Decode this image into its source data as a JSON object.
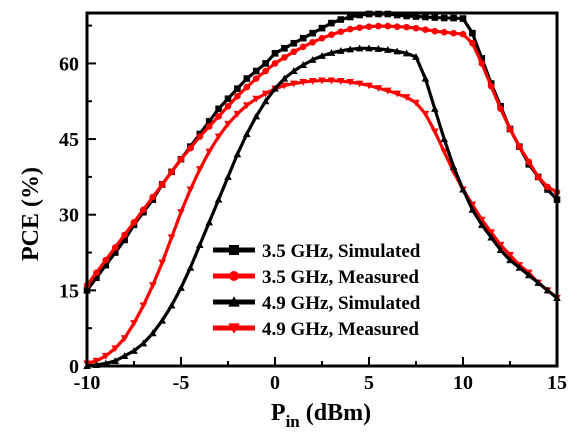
{
  "chart_data": {
    "type": "line",
    "xlabel": "P",
    "xlabel_sub": "in",
    "xlabel_unit": "(dBm)",
    "ylabel": "PCE (%)",
    "xlim": [
      -10,
      15
    ],
    "ylim": [
      0,
      70
    ],
    "xticks": [
      -10,
      -5,
      0,
      5,
      10,
      15
    ],
    "yticks": [
      0,
      15,
      30,
      45,
      60
    ],
    "legend_position": "bottom-center",
    "series": [
      {
        "name": "3.5 GHz, Simulated",
        "color": "#000000",
        "marker": "square",
        "x": [
          -10,
          -9.5,
          -9,
          -8.5,
          -8,
          -7.5,
          -7,
          -6.5,
          -6,
          -5.5,
          -5,
          -4.5,
          -4,
          -3.5,
          -3,
          -2.5,
          -2,
          -1.5,
          -1,
          -0.5,
          0,
          0.5,
          1,
          1.5,
          2,
          2.5,
          3,
          3.5,
          4,
          4.5,
          5,
          5.5,
          6,
          6.5,
          7,
          7.5,
          8,
          8.5,
          9,
          9.5,
          10,
          10.5,
          11,
          11.5,
          12,
          12.5,
          13,
          13.5,
          14,
          14.5,
          15
        ],
        "y": [
          15,
          17.5,
          20,
          22.5,
          25,
          28,
          30.5,
          33,
          36,
          38.5,
          41,
          43.5,
          46,
          48.5,
          51,
          53,
          55,
          57,
          58.5,
          60,
          62,
          63,
          64,
          65,
          66,
          67,
          68,
          68.7,
          69.2,
          69.6,
          69.8,
          69.8,
          69.8,
          69.6,
          69.4,
          69.3,
          69.2,
          69.1,
          69,
          69,
          68.9,
          66,
          61,
          56,
          51.5,
          47,
          43.5,
          40,
          37.5,
          35,
          33
        ]
      },
      {
        "name": "3.5 GHz, Measured",
        "color": "#ff0000",
        "marker": "circle",
        "x": [
          -10,
          -9.5,
          -9,
          -8.5,
          -8,
          -7.5,
          -7,
          -6.5,
          -6,
          -5.5,
          -5,
          -4.5,
          -4,
          -3.5,
          -3,
          -2.5,
          -2,
          -1.5,
          -1,
          -0.5,
          0,
          0.5,
          1,
          1.5,
          2,
          2.5,
          3,
          3.5,
          4,
          4.5,
          5,
          5.5,
          6,
          6.5,
          7,
          7.5,
          8,
          8.5,
          9,
          9.5,
          10,
          10.5,
          11,
          11.5,
          12,
          12.5,
          13,
          13.5,
          14,
          14.5,
          15
        ],
        "y": [
          16,
          18.5,
          21,
          23.5,
          26,
          28.5,
          31,
          33.5,
          36,
          38.5,
          41,
          43.2,
          45.5,
          47.5,
          49.5,
          51.5,
          53.5,
          55.3,
          57,
          58.5,
          60,
          61.2,
          62.3,
          63.3,
          64.2,
          65,
          65.7,
          66.3,
          66.8,
          67.1,
          67.3,
          67.4,
          67.4,
          67.3,
          67.2,
          67,
          66.7,
          66.4,
          66.2,
          66,
          65.8,
          64,
          60,
          55.5,
          51,
          47,
          43.5,
          40.5,
          37.5,
          35.5,
          34.5
        ]
      },
      {
        "name": "4.9 GHz, Simulated",
        "color": "#000000",
        "marker": "triangle-up",
        "x": [
          -10,
          -9.5,
          -9,
          -8.5,
          -8,
          -7.5,
          -7,
          -6.5,
          -6,
          -5.5,
          -5,
          -4.5,
          -4,
          -3.5,
          -3,
          -2.5,
          -2,
          -1.5,
          -1,
          -0.5,
          0,
          0.5,
          1,
          1.5,
          2,
          2.5,
          3,
          3.5,
          4,
          4.5,
          5,
          5.5,
          6,
          6.5,
          7,
          7.5,
          8,
          8.5,
          9,
          9.5,
          10,
          10.5,
          11,
          11.5,
          12,
          12.5,
          13,
          13.5,
          14,
          14.5,
          15
        ],
        "y": [
          0,
          0.2,
          0.5,
          1,
          2,
          3,
          4.5,
          6.5,
          9,
          12,
          15.5,
          19.5,
          24,
          28.5,
          33,
          37.5,
          42,
          46,
          49.5,
          52.5,
          55,
          57,
          58.5,
          59.7,
          60.7,
          61.5,
          62.1,
          62.5,
          62.8,
          63,
          63,
          62.9,
          62.7,
          62.4,
          62,
          61.3,
          57,
          51,
          45,
          39.5,
          35,
          31,
          28,
          25.5,
          23,
          21,
          19.5,
          18,
          16.5,
          15,
          13.5
        ]
      },
      {
        "name": "4.9 GHz, Measured",
        "color": "#ff0000",
        "marker": "triangle-down",
        "x": [
          -10,
          -9.5,
          -9,
          -8.5,
          -8,
          -7.5,
          -7,
          -6.5,
          -6,
          -5.5,
          -5,
          -4.5,
          -4,
          -3.5,
          -3,
          -2.5,
          -2,
          -1.5,
          -1,
          -0.5,
          0,
          0.5,
          1,
          1.5,
          2,
          2.5,
          3,
          3.5,
          4,
          4.5,
          5,
          5.5,
          6,
          6.5,
          7,
          7.5,
          8,
          8.5,
          9,
          9.5,
          10,
          10.5,
          11,
          11.5,
          12,
          12.5,
          13,
          13.5,
          14,
          14.5,
          15
        ],
        "y": [
          0.5,
          1,
          2,
          3.5,
          5.5,
          8.5,
          12,
          16,
          20.5,
          25.5,
          30.5,
          35,
          39,
          42.5,
          45.5,
          48,
          50,
          51.7,
          53,
          54,
          55,
          55.6,
          56,
          56.3,
          56.5,
          56.6,
          56.6,
          56.5,
          56.3,
          56,
          55.6,
          55.1,
          54.6,
          54,
          53.3,
          52.2,
          50,
          46.5,
          42.5,
          38.5,
          35,
          32,
          29,
          26.5,
          24,
          22,
          20,
          18.5,
          16.5,
          15,
          13.5
        ]
      }
    ]
  }
}
